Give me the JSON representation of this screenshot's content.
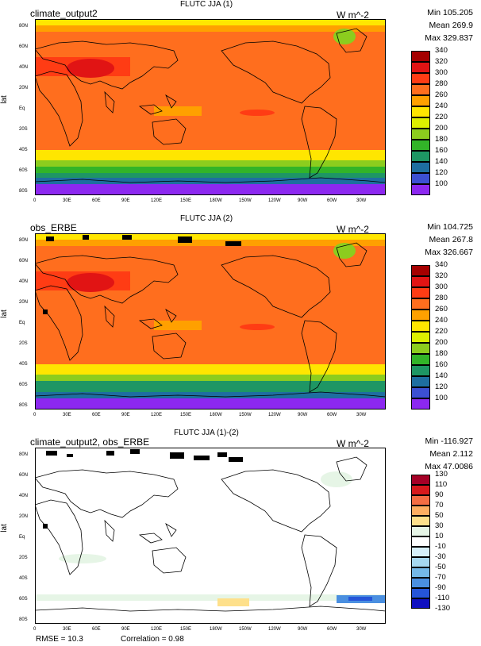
{
  "panels": [
    {
      "title": "FLUTC JJA (1)",
      "left_title": "climate_output2",
      "units": "W m^-2",
      "stats": {
        "min": "Min 105.205",
        "mean": "Mean 269.9",
        "max": "Max 329.837"
      },
      "ylabel": "lat",
      "colorbar": {
        "labels": [
          "340",
          "320",
          "300",
          "280",
          "260",
          "240",
          "220",
          "200",
          "180",
          "160",
          "140",
          "120",
          "100"
        ],
        "colors": [
          "#a50000",
          "#e11414",
          "#ff3c14",
          "#ff6e1e",
          "#ffa000",
          "#ffe600",
          "#dcf000",
          "#8ccd1e",
          "#32b428",
          "#1e9664",
          "#1e6ea0",
          "#3c50d2",
          "#8c28f0"
        ]
      },
      "field": "clim"
    },
    {
      "title": "FLUTC JJA (2)",
      "left_title": "obs_ERBE",
      "units": "W m^-2",
      "stats": {
        "min": "Min 104.725",
        "mean": "Mean 267.8",
        "max": "Max 326.667"
      },
      "ylabel": "lat",
      "colorbar": {
        "labels": [
          "340",
          "320",
          "300",
          "280",
          "260",
          "240",
          "220",
          "200",
          "180",
          "160",
          "140",
          "120",
          "100"
        ],
        "colors": [
          "#a50000",
          "#e11414",
          "#ff3c14",
          "#ff6e1e",
          "#ffa000",
          "#ffe600",
          "#dcf000",
          "#8ccd1e",
          "#32b428",
          "#1e9664",
          "#1e6ea0",
          "#3c50d2",
          "#8c28f0"
        ]
      },
      "field": "obs"
    },
    {
      "title": "FLUTC JJA (1)-(2)",
      "left_title": "climate_output2, obs_ERBE",
      "units": "W m^-2",
      "stats": {
        "min": "Min -116.927",
        "mean": "Mean 2.112",
        "max": "Max 47.0086"
      },
      "ylabel": "lat",
      "colorbar": {
        "labels": [
          "130",
          "110",
          "90",
          "70",
          "50",
          "30",
          "10",
          "-10",
          "-30",
          "-50",
          "-70",
          "-90",
          "-110",
          "-130"
        ],
        "colors": [
          "#a50026",
          "#d7191c",
          "#f46d43",
          "#fdae61",
          "#fee08b",
          "#e6f5e6",
          "#ffffff",
          "#d6f0fa",
          "#a6d8f0",
          "#74b8e8",
          "#4a8fe0",
          "#2555d8",
          "#1010c0"
        ]
      },
      "field": "diff"
    }
  ],
  "axes": {
    "lat_ticks": [
      "80N",
      "60N",
      "40N",
      "20N",
      "Eq",
      "20S",
      "40S",
      "60S",
      "80S"
    ],
    "lon_ticks": [
      "0",
      "30E",
      "60E",
      "90E",
      "120E",
      "150E",
      "180W",
      "150W",
      "120W",
      "90W",
      "60W",
      "30W"
    ]
  },
  "footer": {
    "rmse": "RMSE = 10.3",
    "correlation": "Correlation = 0.98"
  }
}
